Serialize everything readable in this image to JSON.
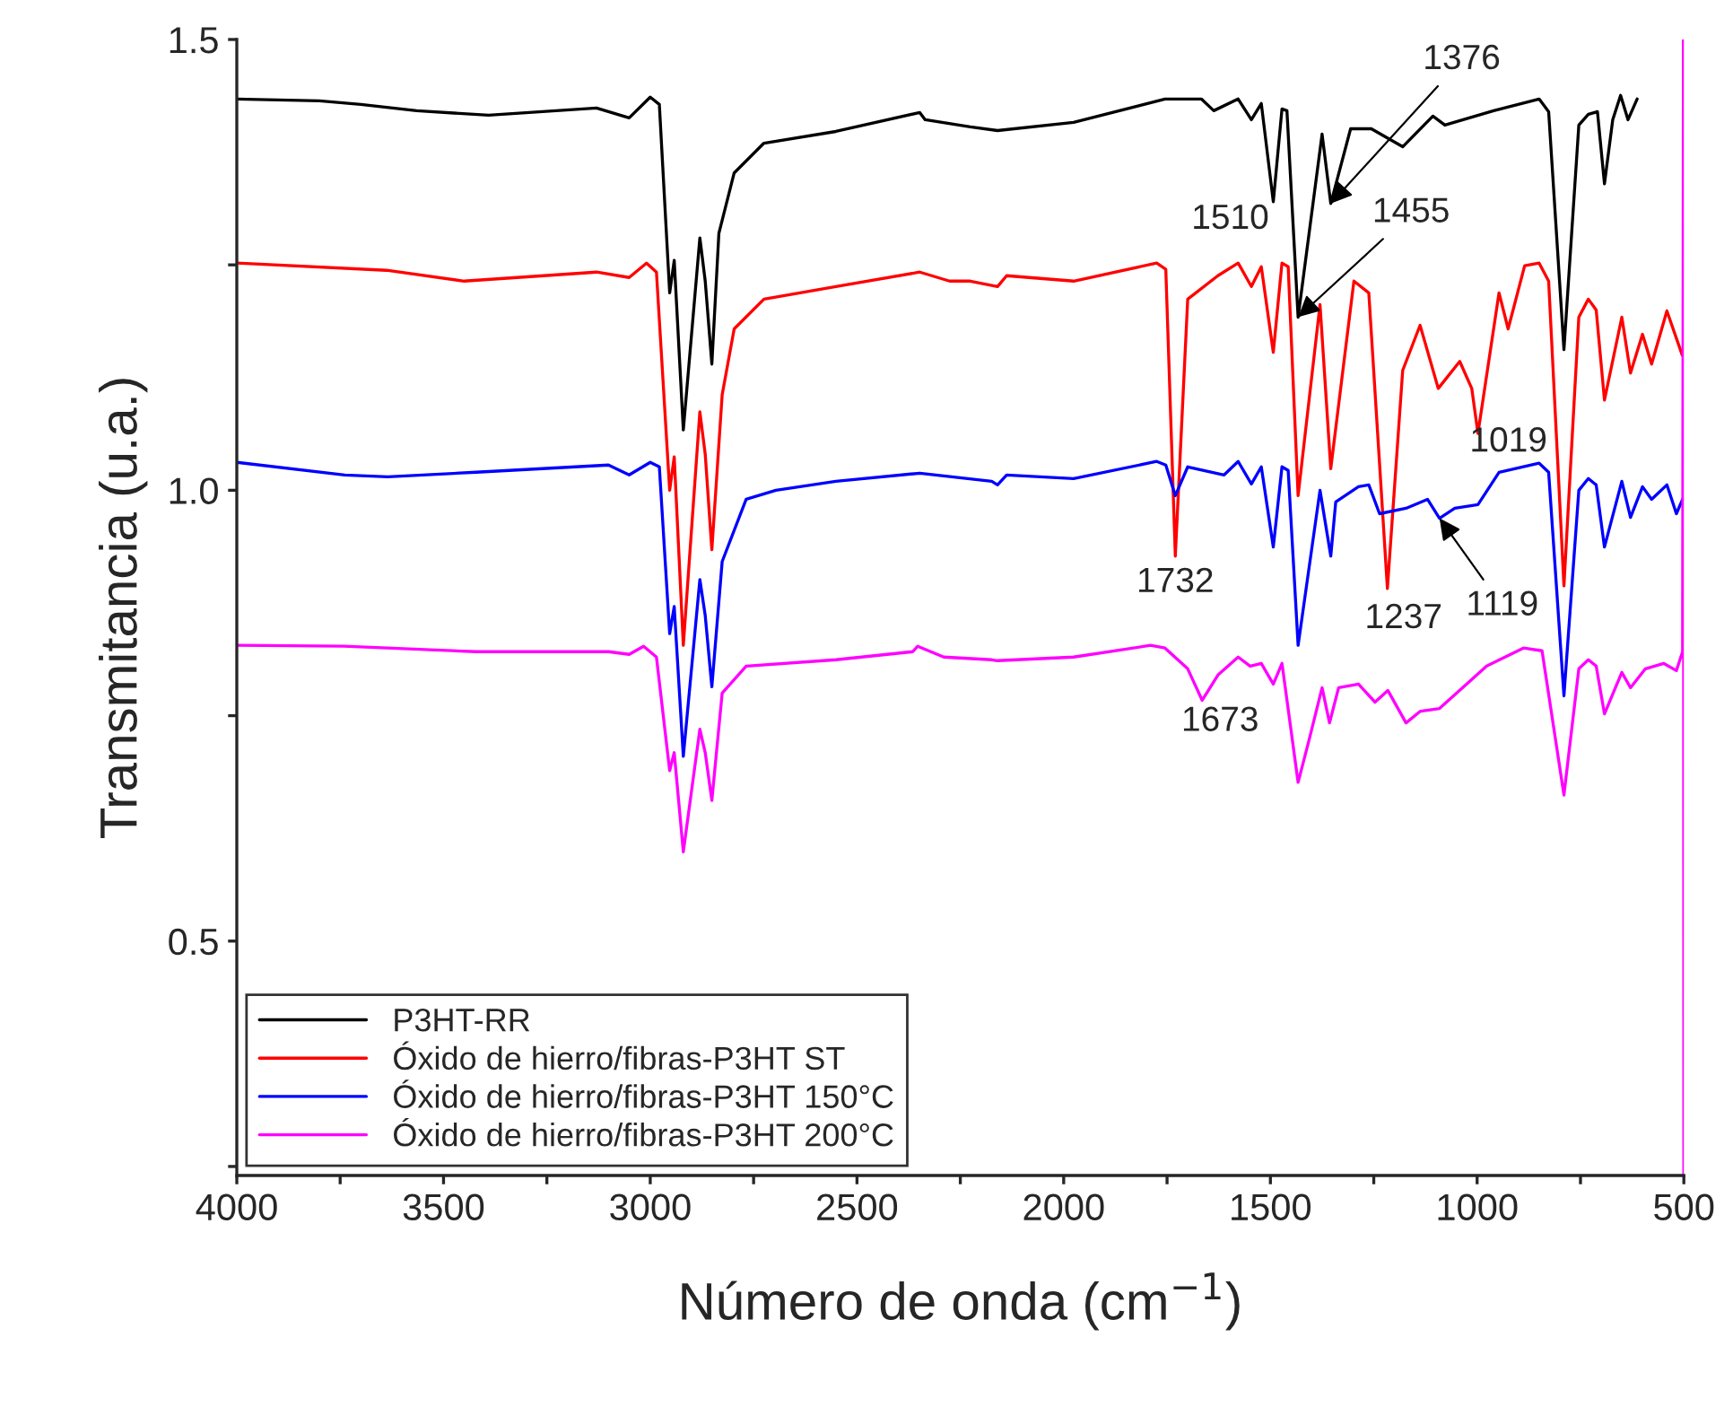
{
  "chart_data": {
    "type": "line",
    "xlabel": "Número de onda (cm$^{−1}$)",
    "ylabel": "Transmitancia (u.a.)",
    "xlim": [
      4000,
      500
    ],
    "ylim": [
      0.24,
      1.5
    ],
    "xticks": [
      4000,
      {
        "value": 3750,
        "label": null
      },
      3500,
      {
        "value": 3250,
        "label": null
      },
      3000,
      {
        "value": 2750,
        "label": null
      },
      2500,
      {
        "value": 2250,
        "label": null
      },
      2000,
      {
        "value": 1750,
        "label": null
      },
      1500,
      {
        "value": 1250,
        "label": null
      },
      1000,
      {
        "value": 750,
        "label": null
      },
      500
    ],
    "yticks": [
      {
        "value": 1.5,
        "label": "1.5"
      },
      {
        "value": 1.25,
        "label": null
      },
      {
        "value": 1.0,
        "label": "1.0"
      },
      {
        "value": 0.75,
        "label": null
      },
      {
        "value": 0.5,
        "label": "0.5"
      },
      {
        "value": 0.25,
        "label": null
      }
    ],
    "grid": false,
    "legend": "bottom left",
    "line_style": "solid",
    "marker": "none",
    "series": [
      {
        "name": "P3HT-RR",
        "color": "#000000",
        "x": [
          4000,
          3800,
          3700,
          3565,
          3391,
          3130,
          3051,
          3000,
          2978,
          2953,
          2942,
          2920,
          2880,
          2867,
          2851,
          2834,
          2797,
          2725,
          2551,
          2348,
          2335,
          2226,
          2160,
          1976,
          1755,
          1667,
          1637,
          1578,
          1546,
          1522,
          1493,
          1472,
          1460,
          1433,
          1375,
          1354,
          1306,
          1256,
          1180,
          1107,
          1078,
          960,
          850,
          827,
          790,
          754,
          731,
          709,
          692,
          672,
          653,
          635,
          613
        ],
        "values": [
          1.434,
          1.432,
          1.428,
          1.421,
          1.416,
          1.424,
          1.413,
          1.436,
          1.428,
          1.219,
          1.255,
          1.067,
          1.28,
          1.232,
          1.14,
          1.285,
          1.352,
          1.385,
          1.398,
          1.419,
          1.411,
          1.403,
          1.399,
          1.408,
          1.434,
          1.434,
          1.421,
          1.434,
          1.411,
          1.429,
          1.32,
          1.423,
          1.421,
          1.192,
          1.395,
          1.318,
          1.401,
          1.401,
          1.381,
          1.415,
          1.405,
          1.421,
          1.434,
          1.42,
          1.156,
          1.405,
          1.417,
          1.42,
          1.34,
          1.411,
          1.438,
          1.411,
          1.434
        ]
      },
      {
        "name": "Óxido de hierro/fibras-P3HT ST",
        "color": "#ff0000",
        "x": [
          4000,
          3638,
          3450,
          3130,
          3051,
          3009,
          2985,
          2953,
          2942,
          2920,
          2880,
          2867,
          2851,
          2826,
          2797,
          2725,
          2551,
          2348,
          2276,
          2226,
          2160,
          2138,
          1976,
          1775,
          1753,
          1730,
          1700,
          1627,
          1578,
          1546,
          1522,
          1493,
          1472,
          1457,
          1433,
          1380,
          1354,
          1298,
          1262,
          1217,
          1180,
          1138,
          1094,
          1042,
          1013,
          998,
          947,
          925,
          885,
          850,
          827,
          790,
          754,
          731,
          712,
          692,
          650,
          629,
          600,
          578,
          541,
          504
        ],
        "values": [
          1.252,
          1.244,
          1.232,
          1.242,
          1.236,
          1.252,
          1.242,
          1.0,
          1.037,
          0.828,
          1.087,
          1.04,
          0.934,
          1.106,
          1.179,
          1.212,
          1.226,
          1.242,
          1.232,
          1.232,
          1.226,
          1.238,
          1.232,
          1.252,
          1.245,
          0.927,
          1.212,
          1.238,
          1.252,
          1.226,
          1.248,
          1.153,
          1.252,
          1.248,
          0.994,
          1.206,
          1.024,
          1.232,
          1.219,
          0.891,
          1.133,
          1.183,
          1.113,
          1.143,
          1.113,
          1.063,
          1.219,
          1.179,
          1.249,
          1.252,
          1.232,
          0.894,
          1.192,
          1.212,
          1.2,
          1.1,
          1.192,
          1.13,
          1.173,
          1.14,
          1.199,
          1.15
        ]
      },
      {
        "name": "Óxido de hierro/fibras-P3HT 150°C",
        "color": "#0000ff",
        "x": [
          4000,
          3739,
          3635,
          3421,
          3101,
          3051,
          3000,
          2978,
          2953,
          2942,
          2920,
          2880,
          2867,
          2851,
          2826,
          2768,
          2696,
          2551,
          2348,
          2174,
          2160,
          2138,
          1976,
          1775,
          1753,
          1730,
          1700,
          1612,
          1578,
          1546,
          1522,
          1493,
          1472,
          1457,
          1433,
          1380,
          1354,
          1342,
          1287,
          1262,
          1236,
          1172,
          1120,
          1091,
          1054,
          998,
          947,
          850,
          827,
          790,
          754,
          731,
          712,
          692,
          650,
          629,
          600,
          578,
          541,
          518,
          503
        ],
        "values": [
          1.031,
          1.017,
          1.015,
          1.02,
          1.028,
          1.017,
          1.031,
          1.026,
          0.841,
          0.871,
          0.705,
          0.901,
          0.861,
          0.782,
          0.921,
          0.99,
          1.0,
          1.01,
          1.019,
          1.01,
          1.006,
          1.017,
          1.013,
          1.032,
          1.028,
          0.994,
          1.026,
          1.017,
          1.032,
          1.007,
          1.026,
          0.937,
          1.026,
          1.022,
          0.828,
          1.0,
          0.927,
          0.987,
          1.004,
          1.006,
          0.974,
          0.98,
          0.99,
          0.969,
          0.98,
          0.984,
          1.02,
          1.03,
          1.02,
          0.772,
          1.0,
          1.013,
          1.006,
          0.937,
          1.01,
          0.97,
          1.004,
          0.99,
          1.006,
          0.974,
          0.99
        ]
      },
      {
        "name": "Óxido de hierro/fibras-P3HT 200°C",
        "color": "#ff00ff",
        "x": [
          4000,
          3741,
          3421,
          3101,
          3051,
          3016,
          2985,
          2953,
          2942,
          2920,
          2880,
          2867,
          2851,
          2826,
          2768,
          2551,
          2365,
          2353,
          2290,
          2174,
          2160,
          1976,
          1790,
          1755,
          1700,
          1665,
          1627,
          1578,
          1549,
          1522,
          1493,
          1472,
          1433,
          1407,
          1375,
          1357,
          1335,
          1287,
          1247,
          1216,
          1172,
          1137,
          1091,
          977,
          888,
          843,
          790,
          754,
          731,
          712,
          692,
          650,
          629,
          593,
          549,
          518,
          503,
          501,
          500
        ],
        "values": [
          0.828,
          0.827,
          0.821,
          0.821,
          0.818,
          0.827,
          0.815,
          0.689,
          0.709,
          0.599,
          0.735,
          0.709,
          0.656,
          0.775,
          0.805,
          0.812,
          0.821,
          0.827,
          0.815,
          0.812,
          0.811,
          0.815,
          0.828,
          0.825,
          0.802,
          0.767,
          0.795,
          0.815,
          0.805,
          0.808,
          0.785,
          0.808,
          0.676,
          0.722,
          0.781,
          0.742,
          0.781,
          0.785,
          0.765,
          0.778,
          0.742,
          0.755,
          0.758,
          0.805,
          0.825,
          0.822,
          0.662,
          0.802,
          0.812,
          0.805,
          0.752,
          0.798,
          0.781,
          0.802,
          0.808,
          0.8,
          0.821,
          1.5,
          0.24
        ]
      }
    ],
    "annotations": [
      {
        "text": "1376",
        "x": 1354,
        "y": 1.318
      },
      {
        "text": "1510",
        "x": 1493,
        "y": 1.32
      },
      {
        "text": "1455",
        "x": 1433,
        "y": 1.192
      },
      {
        "text": "1732",
        "x": 1730,
        "y": 0.927
      },
      {
        "text": "1019",
        "x": 998,
        "y": 1.063
      },
      {
        "text": "1237",
        "x": 1217,
        "y": 0.891
      },
      {
        "text": "1119",
        "x": 1091,
        "y": 0.969
      },
      {
        "text": "1673",
        "x": 1665,
        "y": 0.767
      }
    ]
  }
}
